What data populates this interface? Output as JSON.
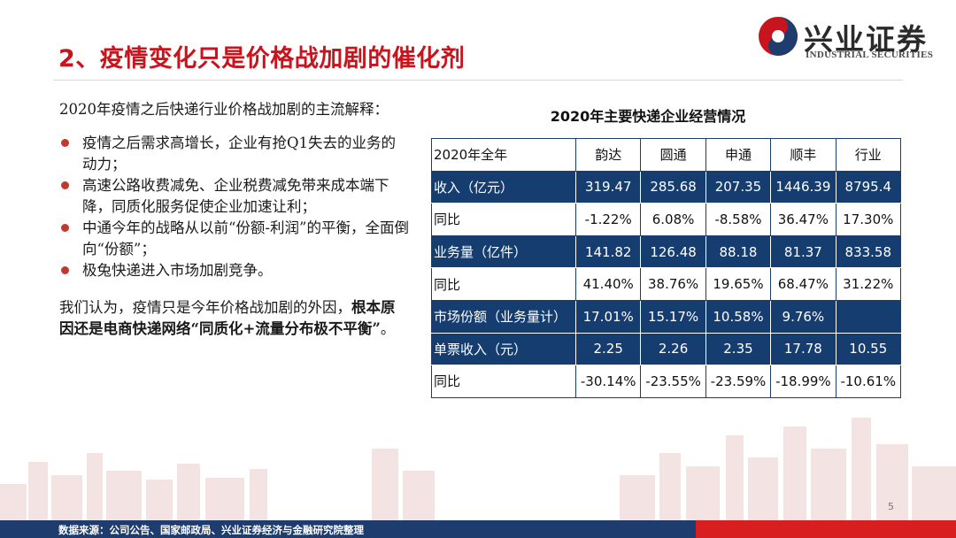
{
  "header": {
    "title": "2、疫情变化只是价格战加剧的催化剂",
    "logo_cn": "兴业证券",
    "logo_en": "INDUSTRIAL SECURITIES",
    "brand_red": "#c8141d",
    "brand_navy": "#1e3d6e"
  },
  "left_text": {
    "intro": "2020年疫情之后快递行业价格战加剧的主流解释：",
    "bullets": [
      "疫情之后需求高增长，企业有抢Q1失去的业务的动力；",
      "高速公路收费减免、企业税费减免带来成本端下降，同质化服务促使企业加速让利；",
      "中通今年的战略从以前“份额-利润”的平衡，全面倒向“份额”；",
      "极兔快递进入市场加剧竞争。"
    ],
    "conclusion_lead": "我们认为，疫情只是今年价格战加剧的外因，",
    "conclusion_bold": "根本原因还是电商快递网络“同质化+流量分布极不平衡”",
    "conclusion_end": "。"
  },
  "table": {
    "title": "2020年主要快递企业经营情况",
    "header": [
      "2020年全年",
      "韵达",
      "圆通",
      "申通",
      "顺丰",
      "行业"
    ],
    "rows": [
      {
        "label": "收入（亿元）",
        "values": [
          "319.47",
          "285.68",
          "207.35",
          "1446.39",
          "8795.4"
        ],
        "style": "dark"
      },
      {
        "label": "同比",
        "values": [
          "-1.22%",
          "6.08%",
          "-8.58%",
          "36.47%",
          "17.30%"
        ],
        "style": "light"
      },
      {
        "label": "业务量（亿件）",
        "values": [
          "141.82",
          "126.48",
          "88.18",
          "81.37",
          "833.58"
        ],
        "style": "dark"
      },
      {
        "label": "同比",
        "values": [
          "41.40%",
          "38.76%",
          "19.65%",
          "68.47%",
          "31.22%"
        ],
        "style": "light"
      },
      {
        "label": "市场份额（业务量计）",
        "values": [
          "17.01%",
          "15.17%",
          "10.58%",
          "9.76%",
          ""
        ],
        "style": "dark"
      },
      {
        "label": "单票收入（元）",
        "values": [
          "2.25",
          "2.26",
          "2.35",
          "17.78",
          "10.55"
        ],
        "style": "dark"
      },
      {
        "label": "同比",
        "values": [
          "-30.14%",
          "-23.55%",
          "-23.59%",
          "-18.99%",
          "-10.61%"
        ],
        "style": "light"
      }
    ]
  },
  "footer": {
    "source": "数据来源：公司公告、国家邮政局、兴业证券经济与金融研究院整理",
    "page_number": "5"
  }
}
